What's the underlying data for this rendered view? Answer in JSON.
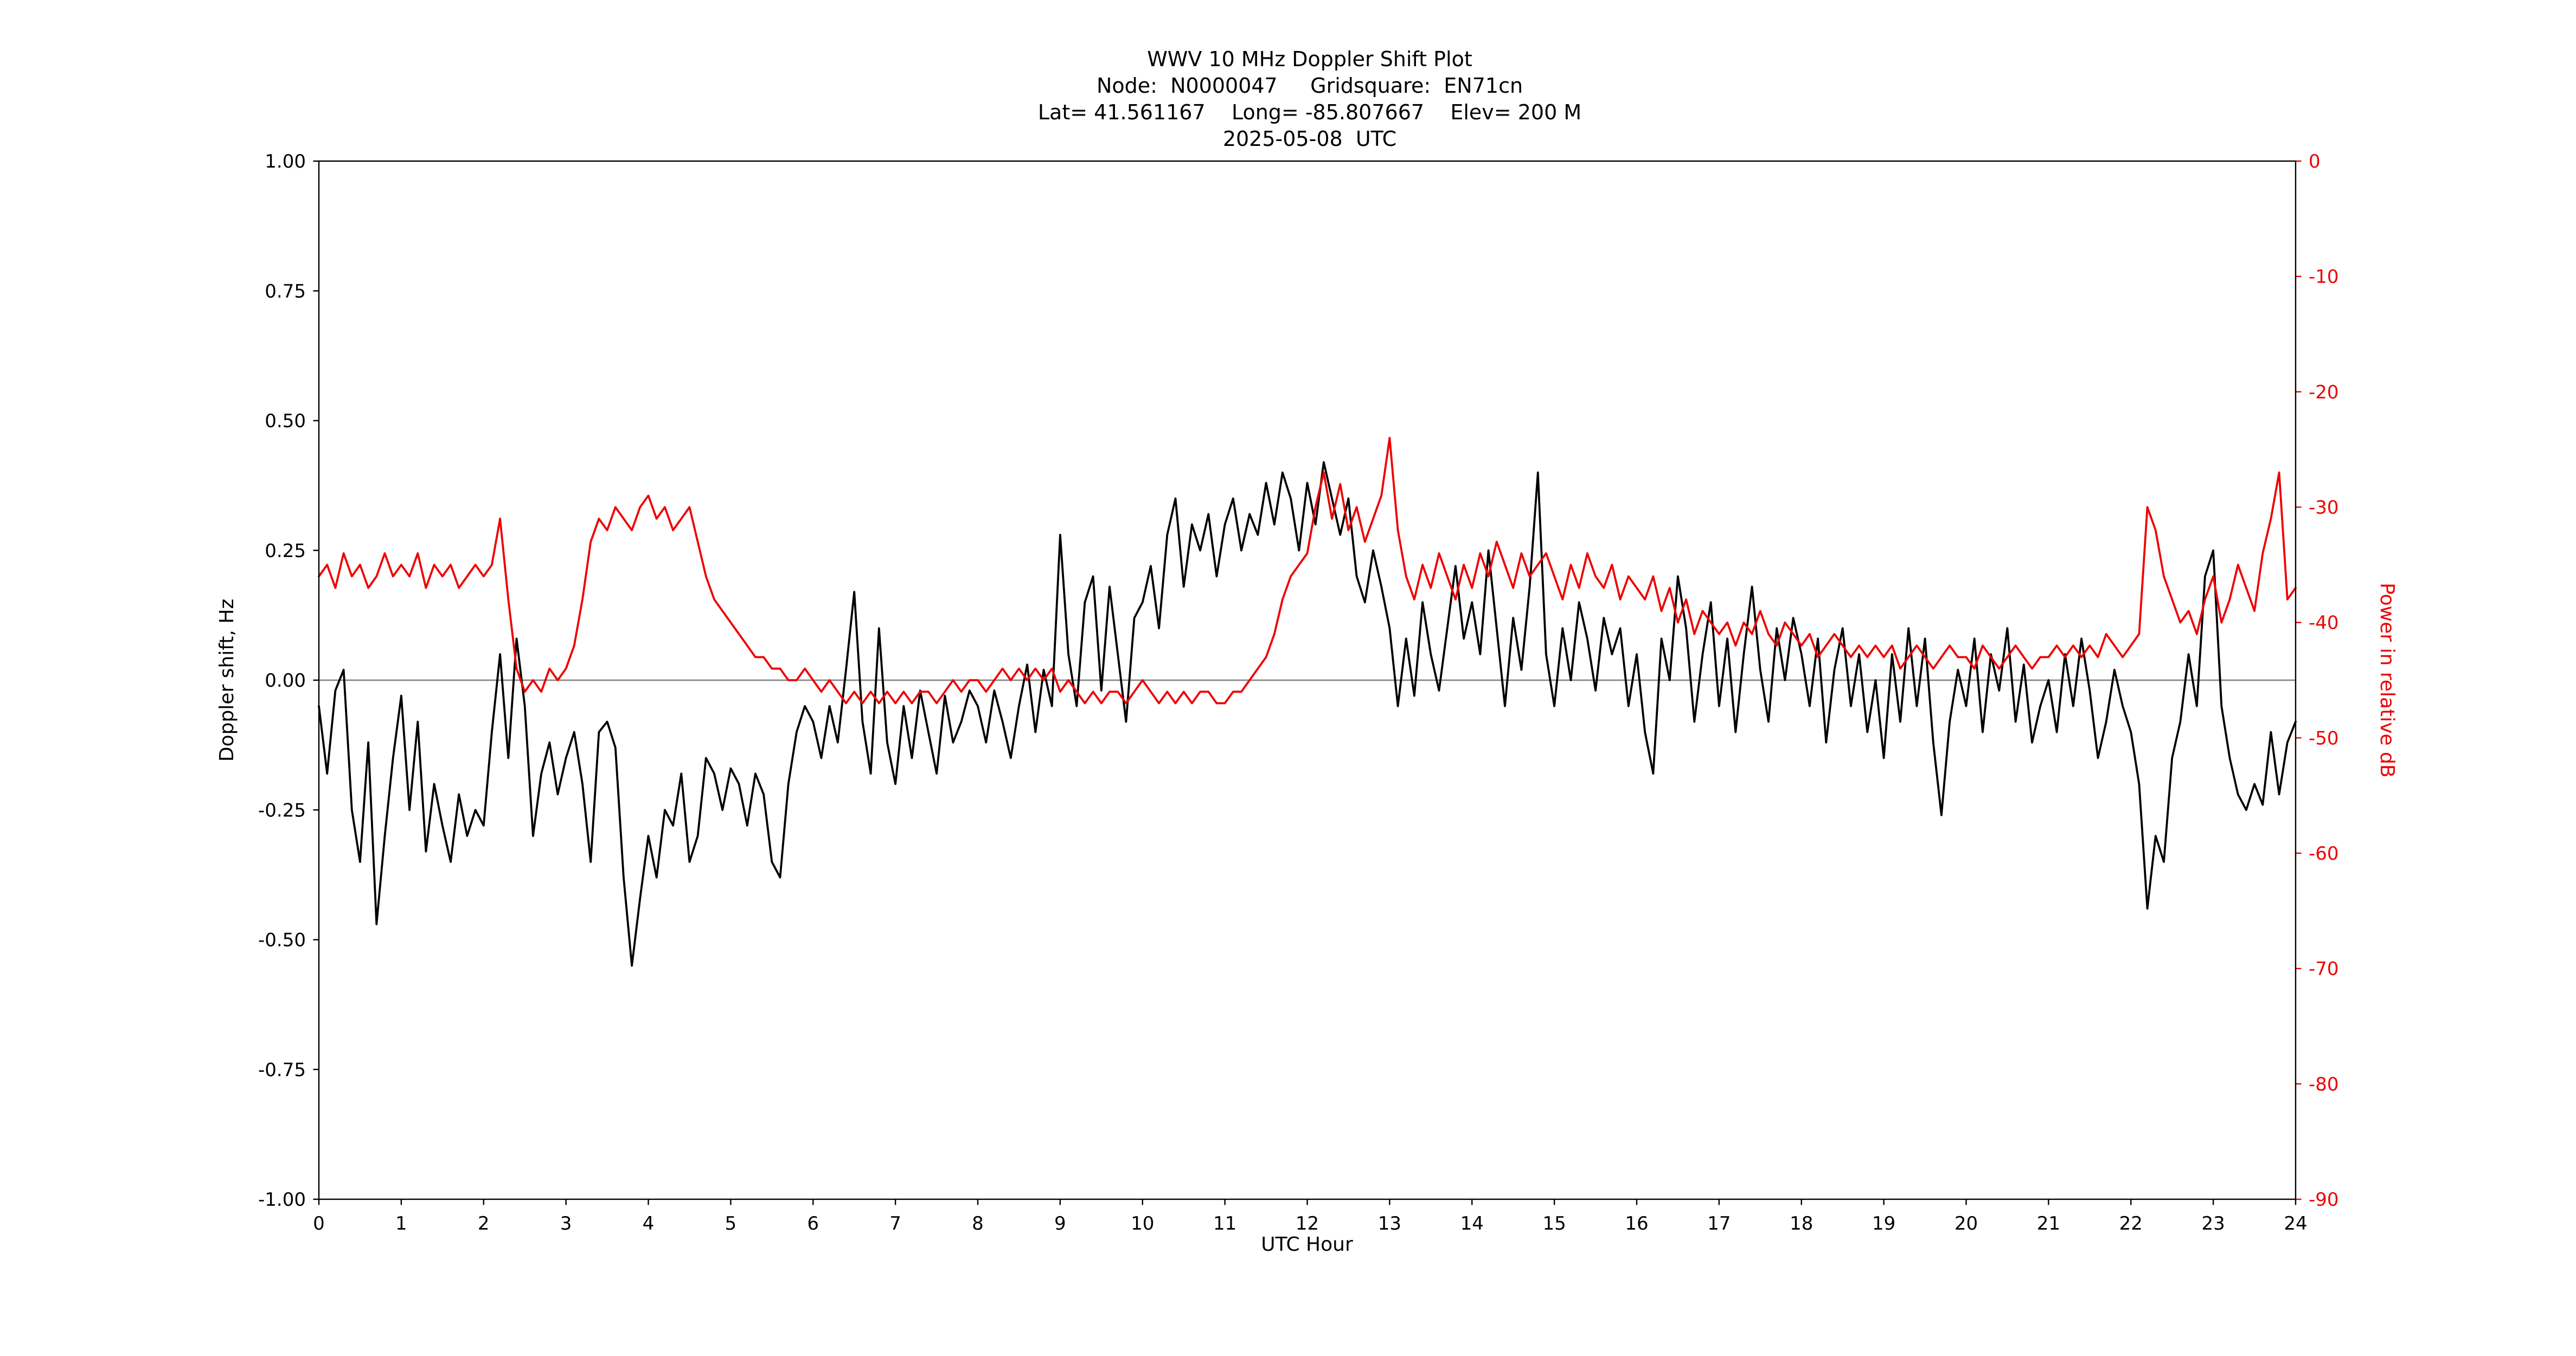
{
  "header": {
    "title": "WWV 10 MHz Doppler Shift Plot",
    "node_line": "Node:  N0000047     Gridsquare:  EN71cn",
    "location_line": "Lat= 41.561167    Long= -85.807667    Elev= 200 M",
    "date_line": "2025-05-08  UTC"
  },
  "colors": {
    "doppler_series": "#000000",
    "power_series": "#ee0000",
    "zero_line": "#808080",
    "frame": "#000000"
  },
  "chart_data": {
    "type": "line",
    "title": "WWV 10 MHz Doppler Shift Plot",
    "subtitle_lines": [
      "Node:  N0000047     Gridsquare:  EN71cn",
      "Lat= 41.561167    Long= -85.807667    Elev= 200 M",
      "2025-05-08  UTC"
    ],
    "xlabel": "UTC Hour",
    "ylabel_left": "Doppler shift, Hz",
    "ylabel_right": "Power in relative dB",
    "grid": false,
    "legend_position": "none",
    "xlim": [
      0,
      24
    ],
    "ylim_left": [
      -1.0,
      1.0
    ],
    "ylim_right": [
      -90,
      0
    ],
    "x_description": "UTC hours, uniform 0.1 h steps from 0 to 24 (241 samples per series)",
    "x_min": 0,
    "x_max": 24,
    "x_step": 0.1,
    "x_tick_values": [
      0,
      1,
      2,
      3,
      4,
      5,
      6,
      7,
      8,
      9,
      10,
      11,
      12,
      13,
      14,
      15,
      16,
      17,
      18,
      19,
      20,
      21,
      22,
      23,
      24
    ],
    "x_tick_labels": [
      "0",
      "1",
      "2",
      "3",
      "4",
      "5",
      "6",
      "7",
      "8",
      "9",
      "10",
      "11",
      "12",
      "13",
      "14",
      "15",
      "16",
      "17",
      "18",
      "19",
      "20",
      "21",
      "22",
      "23",
      "24"
    ],
    "y_left_tick_values": [
      1.0,
      0.75,
      0.5,
      0.25,
      0.0,
      -0.25,
      -0.5,
      -0.75,
      -1.0
    ],
    "y_left_tick_labels": [
      "1.00",
      "0.75",
      "0.50",
      "0.25",
      "0.00",
      "-0.25",
      "-0.50",
      "-0.75",
      "-1.00"
    ],
    "y_right_tick_values": [
      0,
      -10,
      -20,
      -30,
      -40,
      -50,
      -60,
      -70,
      -80,
      -90
    ],
    "y_right_tick_labels": [
      "0",
      "-10",
      "-20",
      "-30",
      "-40",
      "-50",
      "-60",
      "-70",
      "-80",
      "-90"
    ],
    "series": [
      {
        "name": "Doppler shift (Hz)",
        "axis": "left",
        "color": "#000000",
        "values": [
          -0.05,
          -0.18,
          -0.02,
          0.02,
          -0.25,
          -0.35,
          -0.12,
          -0.47,
          -0.3,
          -0.15,
          -0.03,
          -0.25,
          -0.08,
          -0.33,
          -0.2,
          -0.28,
          -0.35,
          -0.22,
          -0.3,
          -0.25,
          -0.28,
          -0.1,
          0.05,
          -0.15,
          0.08,
          -0.05,
          -0.3,
          -0.18,
          -0.12,
          -0.22,
          -0.15,
          -0.1,
          -0.2,
          -0.35,
          -0.1,
          -0.08,
          -0.13,
          -0.38,
          -0.55,
          -0.42,
          -0.3,
          -0.38,
          -0.25,
          -0.28,
          -0.18,
          -0.35,
          -0.3,
          -0.15,
          -0.18,
          -0.25,
          -0.17,
          -0.2,
          -0.28,
          -0.18,
          -0.22,
          -0.35,
          -0.38,
          -0.2,
          -0.1,
          -0.05,
          -0.08,
          -0.15,
          -0.05,
          -0.12,
          0.02,
          0.17,
          -0.08,
          -0.18,
          0.1,
          -0.12,
          -0.2,
          -0.05,
          -0.15,
          -0.02,
          -0.1,
          -0.18,
          -0.03,
          -0.12,
          -0.08,
          -0.02,
          -0.05,
          -0.12,
          -0.02,
          -0.08,
          -0.15,
          -0.05,
          0.03,
          -0.1,
          0.02,
          -0.05,
          0.28,
          0.05,
          -0.05,
          0.15,
          0.2,
          -0.02,
          0.18,
          0.05,
          -0.08,
          0.12,
          0.15,
          0.22,
          0.1,
          0.28,
          0.35,
          0.18,
          0.3,
          0.25,
          0.32,
          0.2,
          0.3,
          0.35,
          0.25,
          0.32,
          0.28,
          0.38,
          0.3,
          0.4,
          0.35,
          0.25,
          0.38,
          0.3,
          0.42,
          0.35,
          0.28,
          0.35,
          0.2,
          0.15,
          0.25,
          0.18,
          0.1,
          -0.05,
          0.08,
          -0.03,
          0.15,
          0.05,
          -0.02,
          0.1,
          0.22,
          0.08,
          0.15,
          0.05,
          0.25,
          0.1,
          -0.05,
          0.12,
          0.02,
          0.18,
          0.4,
          0.05,
          -0.05,
          0.1,
          0.0,
          0.15,
          0.08,
          -0.02,
          0.12,
          0.05,
          0.1,
          -0.05,
          0.05,
          -0.1,
          -0.18,
          0.08,
          0.0,
          0.2,
          0.1,
          -0.08,
          0.05,
          0.15,
          -0.05,
          0.08,
          -0.1,
          0.05,
          0.18,
          0.02,
          -0.08,
          0.1,
          0.0,
          0.12,
          0.05,
          -0.05,
          0.08,
          -0.12,
          0.02,
          0.1,
          -0.05,
          0.05,
          -0.1,
          0.0,
          -0.15,
          0.05,
          -0.08,
          0.1,
          -0.05,
          0.08,
          -0.12,
          -0.26,
          -0.08,
          0.02,
          -0.05,
          0.08,
          -0.1,
          0.05,
          -0.02,
          0.1,
          -0.08,
          0.03,
          -0.12,
          -0.05,
          0.0,
          -0.1,
          0.05,
          -0.05,
          0.08,
          -0.02,
          -0.15,
          -0.08,
          0.02,
          -0.05,
          -0.1,
          -0.2,
          -0.44,
          -0.3,
          -0.35,
          -0.15,
          -0.08,
          0.05,
          -0.05,
          0.2,
          0.25,
          -0.05,
          -0.15,
          -0.22,
          -0.25,
          -0.2,
          -0.24,
          -0.1,
          -0.22,
          -0.12,
          -0.08
        ]
      },
      {
        "name": "Power in relative dB",
        "axis": "right",
        "color": "#ee0000",
        "values": [
          -36,
          -35,
          -37,
          -34,
          -36,
          -35,
          -37,
          -36,
          -34,
          -36,
          -35,
          -36,
          -34,
          -37,
          -35,
          -36,
          -35,
          -37,
          -36,
          -35,
          -36,
          -35,
          -31,
          -38,
          -44,
          -46,
          -45,
          -46,
          -44,
          -45,
          -44,
          -42,
          -38,
          -33,
          -31,
          -32,
          -30,
          -31,
          -32,
          -30,
          -29,
          -31,
          -30,
          -32,
          -31,
          -30,
          -33,
          -36,
          -38,
          -39,
          -40,
          -41,
          -42,
          -43,
          -43,
          -44,
          -44,
          -45,
          -45,
          -44,
          -45,
          -46,
          -45,
          -46,
          -47,
          -46,
          -47,
          -46,
          -47,
          -46,
          -47,
          -46,
          -47,
          -46,
          -46,
          -47,
          -46,
          -45,
          -46,
          -45,
          -45,
          -46,
          -45,
          -44,
          -45,
          -44,
          -45,
          -44,
          -45,
          -44,
          -46,
          -45,
          -46,
          -47,
          -46,
          -47,
          -46,
          -46,
          -47,
          -46,
          -45,
          -46,
          -47,
          -46,
          -47,
          -46,
          -47,
          -46,
          -46,
          -47,
          -47,
          -46,
          -46,
          -45,
          -44,
          -43,
          -41,
          -38,
          -36,
          -35,
          -34,
          -30,
          -27,
          -31,
          -28,
          -32,
          -30,
          -33,
          -31,
          -29,
          -24,
          -32,
          -36,
          -38,
          -35,
          -37,
          -34,
          -36,
          -38,
          -35,
          -37,
          -34,
          -36,
          -33,
          -35,
          -37,
          -34,
          -36,
          -35,
          -34,
          -36,
          -38,
          -35,
          -37,
          -34,
          -36,
          -37,
          -35,
          -38,
          -36,
          -37,
          -38,
          -36,
          -39,
          -37,
          -40,
          -38,
          -41,
          -39,
          -40,
          -41,
          -40,
          -42,
          -40,
          -41,
          -39,
          -41,
          -42,
          -40,
          -41,
          -42,
          -41,
          -43,
          -42,
          -41,
          -42,
          -43,
          -42,
          -43,
          -42,
          -43,
          -42,
          -44,
          -43,
          -42,
          -43,
          -44,
          -43,
          -42,
          -43,
          -43,
          -44,
          -42,
          -43,
          -44,
          -43,
          -42,
          -43,
          -44,
          -43,
          -43,
          -42,
          -43,
          -42,
          -43,
          -42,
          -43,
          -41,
          -42,
          -43,
          -42,
          -41,
          -30,
          -32,
          -36,
          -38,
          -40,
          -39,
          -41,
          -38,
          -36,
          -40,
          -38,
          -35,
          -37,
          -39,
          -34,
          -31,
          -27,
          -38,
          -37
        ]
      }
    ]
  }
}
